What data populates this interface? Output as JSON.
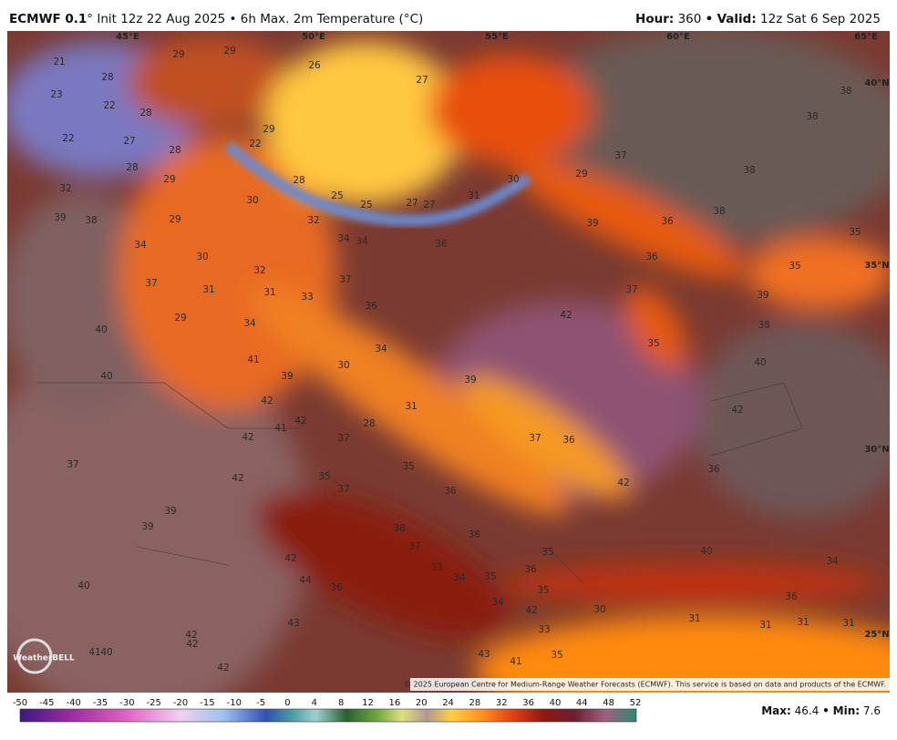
{
  "header": {
    "title_bold": "ECMWF 0.1",
    "title_rest": "° Init 12z 22 Aug 2025 • 6h Max. 2m Temperature (°C)",
    "hour_label": "Hour:",
    "hour": "360",
    "sep": "•",
    "valid_label": "Valid:",
    "valid": "12z Sat 6 Sep 2025"
  },
  "map": {
    "coord_labels": [
      "45°E",
      "50°E",
      "55°E",
      "60°E",
      "65°E",
      "40°N",
      "35°N",
      "30°N",
      "25°N"
    ],
    "temperatures": [
      21,
      23,
      28,
      22,
      22,
      27,
      28,
      29,
      29,
      26,
      29,
      22,
      28,
      28,
      29,
      32,
      27,
      28,
      30,
      25,
      25,
      27,
      27,
      31,
      30,
      29,
      37,
      38,
      38,
      38,
      38,
      36,
      35,
      35,
      36,
      39,
      39,
      38,
      29,
      32,
      34,
      34,
      36,
      34,
      30,
      32,
      37,
      37,
      31,
      31,
      33,
      36,
      37,
      39,
      42,
      38,
      29,
      34,
      40,
      35,
      34,
      40,
      41,
      39,
      30,
      40,
      39,
      42,
      31,
      42,
      41,
      42,
      28,
      42,
      37,
      37,
      36,
      37,
      35,
      42,
      35,
      37,
      36,
      42,
      36,
      39,
      39,
      38,
      38,
      37,
      35,
      40,
      34,
      42,
      33,
      34,
      35,
      36,
      44,
      36,
      40,
      35,
      36,
      34,
      42,
      30,
      31,
      43,
      33,
      31,
      31,
      31,
      42,
      42,
      41,
      40,
      43,
      41,
      35,
      42
    ],
    "credit": "© 2025 European Centre for Medium-Range Weather Forecasts (ECMWF). This service is based on data and products of the ECMWF.",
    "logo": "WeatherBELL"
  },
  "colorbar": {
    "ticks": [
      -50,
      -45,
      -40,
      -35,
      -30,
      -25,
      -20,
      -15,
      -10,
      -5,
      0,
      4,
      8,
      12,
      16,
      20,
      24,
      28,
      32,
      36,
      40,
      44,
      48,
      52
    ]
  },
  "footer": {
    "max_label": "Max:",
    "max": 46.4,
    "min_label": "Min:",
    "min": 7.6
  }
}
